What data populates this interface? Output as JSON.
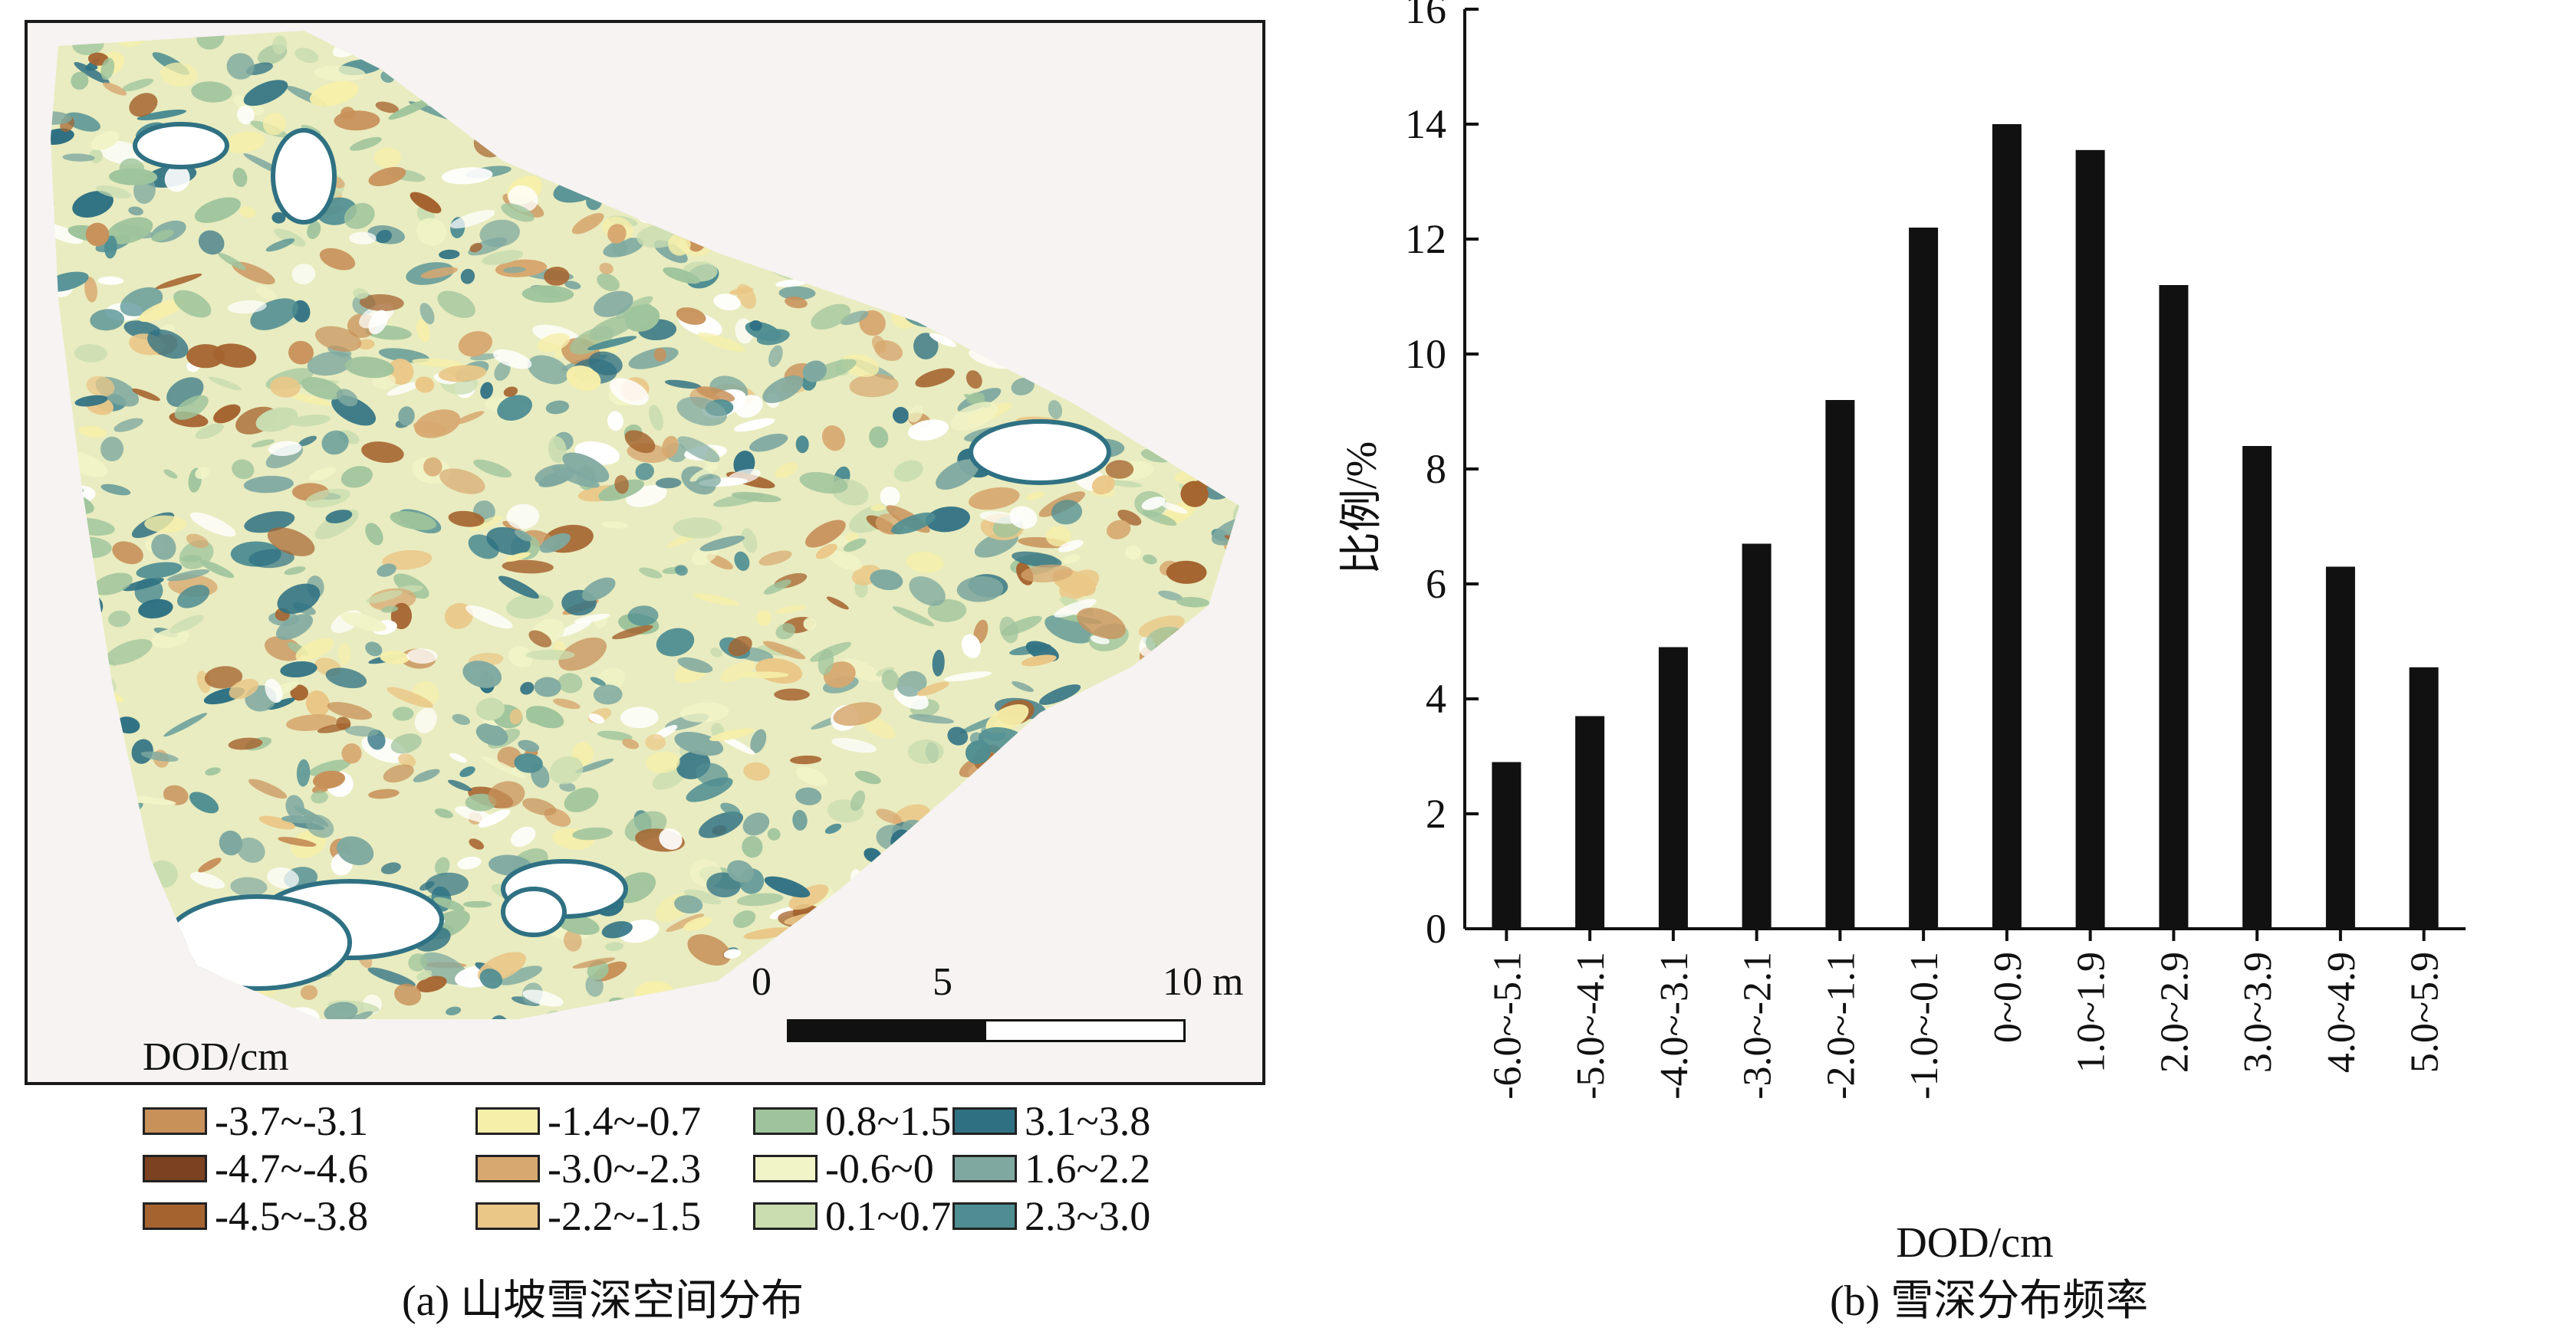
{
  "panel_a": {
    "caption": "(a) 山坡雪深空间分布",
    "legend_title": "DOD/cm",
    "scale_bar": {
      "labels": [
        "0",
        "5",
        "10 m"
      ]
    },
    "legend": [
      {
        "label": "-3.7~-3.1",
        "color": "#c8915a"
      },
      {
        "label": "-1.4~-0.7",
        "color": "#f6efaa"
      },
      {
        "label": "0.8~1.5",
        "color": "#9fc49c"
      },
      {
        "label": "3.1~3.8",
        "color": "#2f7183"
      },
      {
        "label": "-4.7~-4.6",
        "color": "#7a4220"
      },
      {
        "label": "-3.0~-2.3",
        "color": "#d7a870"
      },
      {
        "label": "-0.6~0",
        "color": "#f1f4c6"
      },
      {
        "label": "1.6~2.2",
        "color": "#7fa9a0"
      },
      {
        "label": "-4.5~-3.8",
        "color": "#a5642f"
      },
      {
        "label": "-2.2~-1.5",
        "color": "#eac787"
      },
      {
        "label": "0.1~0.7",
        "color": "#c9ddb0"
      },
      {
        "label": "2.3~3.0",
        "color": "#4e8d92"
      }
    ]
  },
  "panel_b": {
    "caption": "(b) 雪深分布频率"
  },
  "chart_data": {
    "type": "bar",
    "title": "",
    "xlabel": "DOD/cm",
    "ylabel": "比例/%",
    "ylim": [
      0,
      16
    ],
    "yticks": [
      0,
      2,
      4,
      6,
      8,
      10,
      12,
      14,
      16
    ],
    "categories": [
      "-6.0~-5.1",
      "-5.0~-4.1",
      "-4.0~-3.1",
      "-3.0~-2.1",
      "-2.0~-1.1",
      "-1.0~-0.1",
      "0~0.9",
      "1.0~1.9",
      "2.0~2.9",
      "3.0~3.9",
      "4.0~4.9",
      "5.0~5.9"
    ],
    "values": [
      2.9,
      3.7,
      4.9,
      6.7,
      9.2,
      12.2,
      14.0,
      13.55,
      11.2,
      8.4,
      6.3,
      4.55
    ],
    "bar_color": "#111111",
    "grid": false
  }
}
